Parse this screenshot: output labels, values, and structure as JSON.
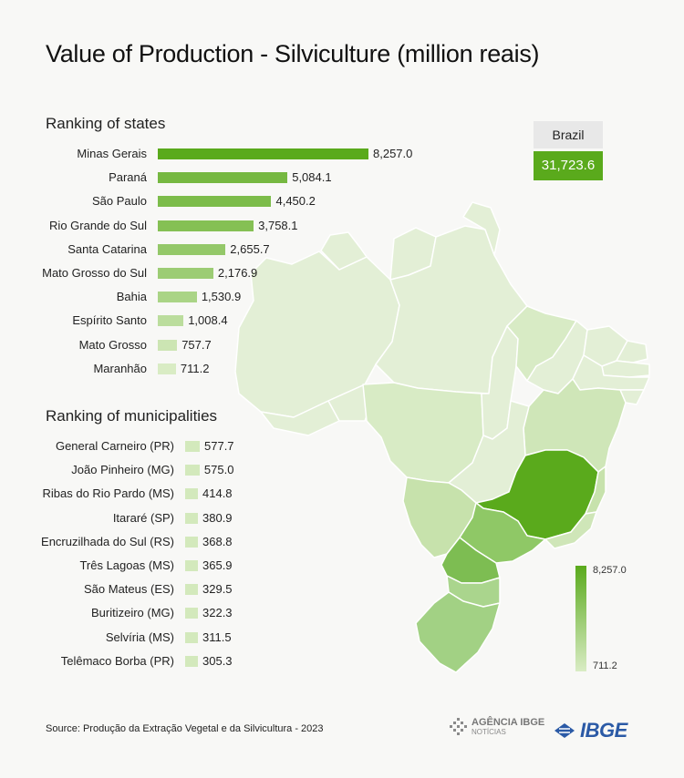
{
  "title": "Value of Production - Silviculture (million reais)",
  "brazil": {
    "label": "Brazil",
    "value": "31,723.6"
  },
  "colors": {
    "dark": "#5aaa1c",
    "light": "#d9ecc4",
    "background": "#f8f8f6"
  },
  "chart_data": [
    {
      "type": "bar",
      "orientation": "horizontal",
      "title": "Ranking of states",
      "categories": [
        "Minas Gerais",
        "Paraná",
        "São Paulo",
        "Rio Grande do Sul",
        "Santa Catarina",
        "Mato Grosso do Sul",
        "Bahia",
        "Espírito Santo",
        "Mato Grosso",
        "Maranhão"
      ],
      "values": [
        8257.0,
        5084.1,
        4450.2,
        3758.1,
        2655.7,
        2176.9,
        1530.9,
        1008.4,
        757.7,
        711.2
      ],
      "value_labels": [
        "8,257.0",
        "5,084.1",
        "4,450.2",
        "3,758.1",
        "2,655.7",
        "2,176.9",
        "1,530.9",
        "1,008.4",
        "757.7",
        "711.2"
      ]
    },
    {
      "type": "bar",
      "orientation": "horizontal",
      "title": "Ranking of municipalities",
      "categories": [
        "General Carneiro (PR)",
        "João Pinheiro (MG)",
        "Ribas do Rio Pardo (MS)",
        "Itararé (SP)",
        "Encruzilhada do Sul (RS)",
        "Três Lagoas (MS)",
        "São Mateus (ES)",
        "Buritizeiro (MG)",
        "Selvíria (MS)",
        "Telêmaco Borba (PR)"
      ],
      "values": [
        577.7,
        575.0,
        414.8,
        380.9,
        368.8,
        365.9,
        329.5,
        322.3,
        311.5,
        305.3
      ],
      "value_labels": [
        "577.7",
        "575.0",
        "414.8",
        "380.9",
        "368.8",
        "365.9",
        "329.5",
        "322.3",
        "311.5",
        "305.3"
      ]
    },
    {
      "type": "choropleth",
      "legend": {
        "max": "8,257.0",
        "min": "711.2"
      }
    }
  ],
  "source": "Source: Produção da Extração Vegetal e da Silvicultura - 2023",
  "logos": {
    "agencia_name": "AGÊNCIA IBGE",
    "agencia_sub": "NOTÍCIAS",
    "ibge": "IBGE"
  }
}
